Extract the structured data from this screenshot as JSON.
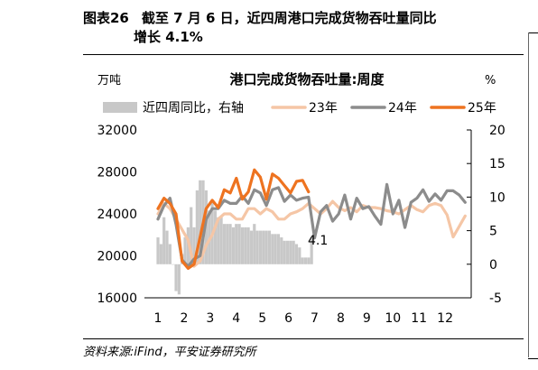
{
  "header": {
    "figure_no": "图表26",
    "title_line1": "截至 7 月 6 日，近四周港口完成货物吞吐量同比",
    "title_line2": "增长 4.1%"
  },
  "source": "资料来源:iFind，平安证券研究所",
  "chart_data": {
    "type": "line",
    "title": "港口完成货物吞吐量:周度",
    "left_unit": "万吨",
    "right_unit": "%",
    "x_ticks": [
      "1",
      "2",
      "3",
      "4",
      "5",
      "6",
      "7",
      "8",
      "9",
      "10",
      "11",
      "12"
    ],
    "y_left": {
      "min": 16000,
      "max": 32000,
      "ticks": [
        "32000",
        "28000",
        "24000",
        "20000",
        "16000"
      ]
    },
    "y_right": {
      "min": -5,
      "max": 20,
      "ticks": [
        "20",
        "15",
        "10",
        "5",
        "0",
        "-5"
      ]
    },
    "annotation": {
      "text": "4.1",
      "week": 26.5
    },
    "series": [
      {
        "name": "近四周同比，右轴",
        "type": "bar",
        "axis": "right",
        "color": "#c8c8c8",
        "weeks": [
          1,
          1.5,
          2,
          2.5,
          3,
          3.5,
          4,
          4.5,
          5,
          5.5,
          6,
          6.5,
          7,
          7.5,
          8,
          8.5,
          9,
          9.5,
          10,
          10.5,
          11,
          11.5,
          12,
          12.5,
          13,
          13.5,
          14,
          14.5,
          15,
          15.5,
          16,
          16.5,
          17,
          17.5,
          18,
          18.5,
          19,
          19.5,
          20,
          20.5,
          21,
          21.5,
          22,
          22.5,
          23,
          23.5,
          24,
          24.5,
          25,
          25.5,
          26,
          26.5
        ],
        "values": [
          4,
          3,
          7,
          5,
          3,
          0,
          -4,
          -4.5,
          1.5,
          4,
          5.5,
          8.5,
          5.5,
          11,
          12.5,
          12.5,
          11,
          8,
          9.5,
          8,
          7,
          7,
          6,
          6,
          6,
          5.5,
          6,
          6,
          5.5,
          5.5,
          5.5,
          5,
          6,
          5,
          5,
          5,
          5,
          5,
          4.5,
          4.5,
          4.5,
          4,
          3.5,
          3.5,
          3.5,
          3.5,
          3,
          2.5,
          1,
          1,
          1,
          4.1
        ]
      },
      {
        "name": "23年",
        "type": "line",
        "axis": "left",
        "color": "#f5c6a6",
        "weeks": [
          1,
          2,
          3,
          4,
          5,
          6,
          7,
          8,
          9,
          10,
          11,
          12,
          13,
          14,
          15,
          16,
          17,
          18,
          19,
          20,
          21,
          22,
          23,
          24,
          25,
          26,
          27,
          28,
          29,
          30,
          31,
          32,
          33,
          34,
          35,
          36,
          37,
          38,
          39,
          40,
          41,
          42,
          43,
          44,
          45,
          46,
          47,
          48,
          49,
          50,
          51,
          52
        ],
        "values": [
          24000,
          25000,
          24500,
          23500,
          22500,
          21500,
          19000,
          19500,
          21000,
          22000,
          23500,
          24000,
          24000,
          23500,
          23500,
          24500,
          24500,
          24000,
          24500,
          24200,
          23500,
          23500,
          24000,
          24200,
          24500,
          25000,
          24500,
          24000,
          24500,
          25200,
          24600,
          24300,
          24600,
          24200,
          24800,
          24600,
          24600,
          24500,
          24300,
          24200,
          24000,
          24400,
          24800,
          24400,
          24200,
          24800,
          25000,
          24800,
          23900,
          21800,
          22800,
          23800
        ]
      },
      {
        "name": "24年",
        "type": "line",
        "axis": "left",
        "color": "#8c8c8c",
        "weeks": [
          1,
          2,
          3,
          4,
          5,
          6,
          7,
          8,
          9,
          10,
          11,
          12,
          13,
          14,
          15,
          16,
          17,
          18,
          19,
          20,
          21,
          22,
          23,
          24,
          25,
          26,
          27,
          28,
          29,
          30,
          31,
          32,
          33,
          34,
          35,
          36,
          37,
          38,
          39,
          40,
          41,
          42,
          43,
          44,
          45,
          46,
          47,
          48,
          49,
          50,
          51,
          52
        ],
        "values": [
          23500,
          24800,
          25500,
          23000,
          19600,
          19000,
          19700,
          20000,
          23500,
          24500,
          24500,
          25300,
          25000,
          25000,
          25700,
          25000,
          26300,
          26000,
          24800,
          26300,
          26500,
          25200,
          25800,
          25300,
          25500,
          25600,
          21700,
          24200,
          24800,
          23300,
          24000,
          25800,
          23500,
          25500,
          24500,
          24700,
          23800,
          23000,
          26800,
          24000,
          25300,
          22700,
          25100,
          25500,
          26300,
          25200,
          25900,
          25300,
          26200,
          26200,
          25800,
          25100
        ]
      },
      {
        "name": "25年",
        "type": "line",
        "axis": "left",
        "color": "#ee7320",
        "weeks": [
          1,
          2,
          3,
          4,
          5,
          6,
          7,
          8,
          9,
          10,
          11,
          12,
          13,
          14,
          15,
          16,
          17,
          18,
          19,
          20,
          21,
          22,
          23,
          24,
          25,
          26
        ],
        "values": [
          24500,
          25500,
          25000,
          24000,
          19500,
          18800,
          19200,
          21800,
          24500,
          25300,
          24600,
          26300,
          26000,
          27400,
          25400,
          26100,
          28200,
          27500,
          25400,
          27800,
          27400,
          26700,
          26000,
          27100,
          27200,
          26100
        ]
      }
    ]
  }
}
